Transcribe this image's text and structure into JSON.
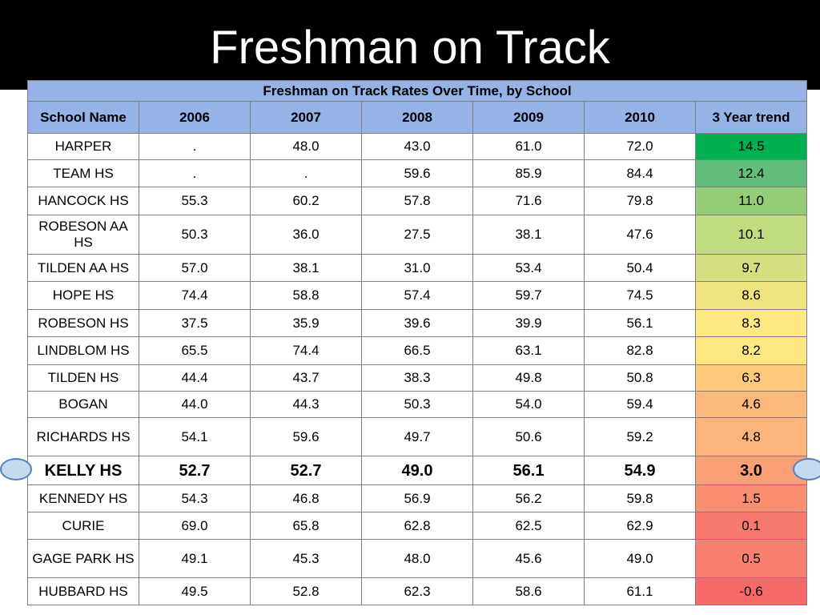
{
  "title": "Freshman on Track",
  "table": {
    "caption": "Freshman on Track Rates Over Time, by School",
    "headers": [
      "School Name",
      "2006",
      "2007",
      "2008",
      "2009",
      "2010",
      "3 Year trend"
    ],
    "rows": [
      {
        "school": "HARPER",
        "v2006": ".",
        "v2007": "48.0",
        "v2008": "43.0",
        "v2009": "61.0",
        "v2010": "72.0",
        "trend": "14.5",
        "trend_color": "#00b050"
      },
      {
        "school": "TEAM HS",
        "v2006": ".",
        "v2007": ".",
        "v2008": "59.6",
        "v2009": "85.9",
        "v2010": "84.4",
        "trend": "12.4",
        "trend_color": "#63be7b"
      },
      {
        "school": "HANCOCK HS",
        "v2006": "55.3",
        "v2007": "60.2",
        "v2008": "57.8",
        "v2009": "71.6",
        "v2010": "79.8",
        "trend": "11.0",
        "trend_color": "#94cc7a"
      },
      {
        "school": "ROBESON AA HS",
        "v2006": "50.3",
        "v2007": "36.0",
        "v2008": "27.5",
        "v2009": "38.1",
        "v2010": "47.6",
        "trend": "10.1",
        "trend_color": "#c1dc7f"
      },
      {
        "school": "TILDEN AA HS",
        "v2006": "57.0",
        "v2007": "38.1",
        "v2008": "31.0",
        "v2009": "53.4",
        "v2010": "50.4",
        "trend": "9.7",
        "trend_color": "#d4e07f"
      },
      {
        "school": "HOPE HS",
        "v2006": "74.4",
        "v2007": "58.8",
        "v2008": "57.4",
        "v2009": "59.7",
        "v2010": "74.5",
        "trend": "8.6",
        "trend_color": "#f1e480"
      },
      {
        "school": "ROBESON HS",
        "v2006": "37.5",
        "v2007": "35.9",
        "v2008": "39.6",
        "v2009": "39.9",
        "v2010": "56.1",
        "trend": "8.3",
        "trend_color": "#fde883"
      },
      {
        "school": "LINDBLOM HS",
        "v2006": "65.5",
        "v2007": "74.4",
        "v2008": "66.5",
        "v2009": "63.1",
        "v2010": "82.8",
        "trend": "8.2",
        "trend_color": "#fee682"
      },
      {
        "school": "TILDEN HS",
        "v2006": "44.4",
        "v2007": "43.7",
        "v2008": "38.3",
        "v2009": "49.8",
        "v2010": "50.8",
        "trend": "6.3",
        "trend_color": "#fdca7d"
      },
      {
        "school": "BOGAN",
        "v2006": "44.0",
        "v2007": "44.3",
        "v2008": "50.3",
        "v2009": "54.0",
        "v2010": "59.4",
        "trend": "4.6",
        "trend_color": "#fcb77a"
      },
      {
        "school": "RICHARDS HS",
        "v2006": "54.1",
        "v2007": "59.6",
        "v2008": "49.7",
        "v2009": "50.6",
        "v2010": "59.2",
        "trend": "4.8",
        "trend_color": "#fbb479"
      },
      {
        "school": "KELLY HS",
        "v2006": "52.7",
        "v2007": "52.7",
        "v2008": "49.0",
        "v2009": "56.1",
        "v2010": "54.9",
        "trend": "3.0",
        "trend_color": "#fa9f76",
        "bold": true
      },
      {
        "school": "KENNEDY HS",
        "v2006": "54.3",
        "v2007": "46.8",
        "v2008": "56.9",
        "v2009": "56.2",
        "v2010": "59.8",
        "trend": "1.5",
        "trend_color": "#f98e72"
      },
      {
        "school": "CURIE",
        "v2006": "69.0",
        "v2007": "65.8",
        "v2008": "62.8",
        "v2009": "62.5",
        "v2010": "62.9",
        "trend": "0.1",
        "trend_color": "#f8796d"
      },
      {
        "school": "GAGE PARK HS",
        "v2006": "49.1",
        "v2007": "45.3",
        "v2008": "48.0",
        "v2009": "45.6",
        "v2010": "49.0",
        "trend": "0.5",
        "trend_color": "#f8806f"
      },
      {
        "school": "HUBBARD HS",
        "v2006": "49.5",
        "v2007": "52.8",
        "v2008": "62.3",
        "v2009": "58.6",
        "v2010": "61.1",
        "trend": "-0.6",
        "trend_color": "#f8696b"
      }
    ]
  }
}
